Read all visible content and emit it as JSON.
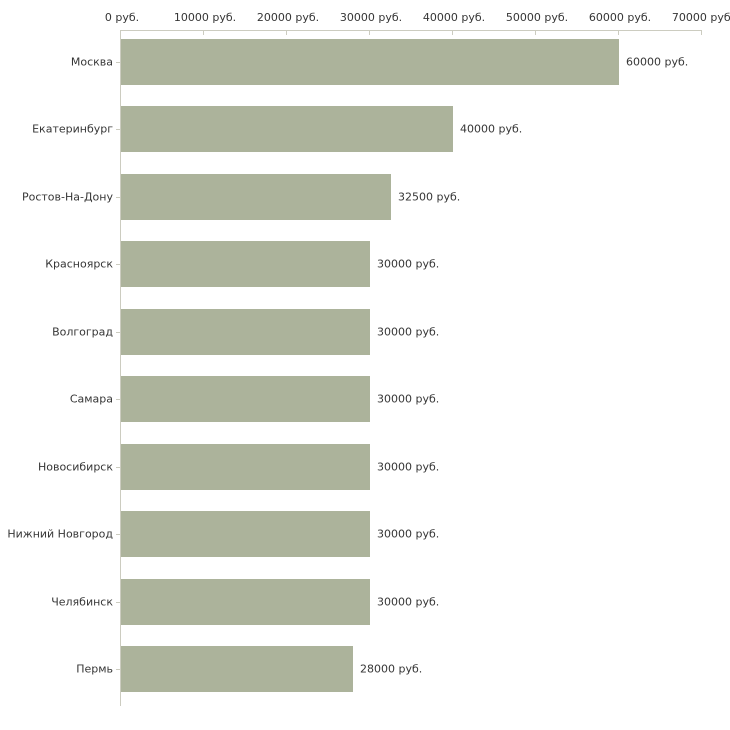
{
  "chart_data": {
    "type": "bar",
    "orientation": "horizontal",
    "title": "",
    "xlabel": "",
    "ylabel": "",
    "unit": "руб.",
    "categories": [
      "Москва",
      "Екатеринбург",
      "Ростов-На-Дону",
      "Красноярск",
      "Волгоград",
      "Самара",
      "Новосибирск",
      "Нижний Новгород",
      "Челябинск",
      "Пермь"
    ],
    "values": [
      60000,
      40000,
      32500,
      30000,
      30000,
      30000,
      30000,
      30000,
      30000,
      28000
    ],
    "value_labels": [
      "60000 руб.",
      "40000 руб.",
      "32500 руб.",
      "30000 руб.",
      "30000 руб.",
      "30000 руб.",
      "30000 руб.",
      "30000 руб.",
      "30000 руб.",
      "28000 руб."
    ],
    "x_ticks": [
      0,
      10000,
      20000,
      30000,
      40000,
      50000,
      60000,
      70000
    ],
    "x_tick_labels": [
      "0 руб.",
      "10000 руб.",
      "20000 руб.",
      "30000 руб.",
      "40000 руб.",
      "50000 руб.",
      "60000 руб.",
      "70000 руб."
    ],
    "xlim": [
      0,
      70000
    ],
    "grid": false,
    "legend": false,
    "axis_position": "top",
    "bar_color": "#acb39b",
    "axis_color": "#ccccc0",
    "text_color": "#363636",
    "background_color": "#ffffff"
  }
}
